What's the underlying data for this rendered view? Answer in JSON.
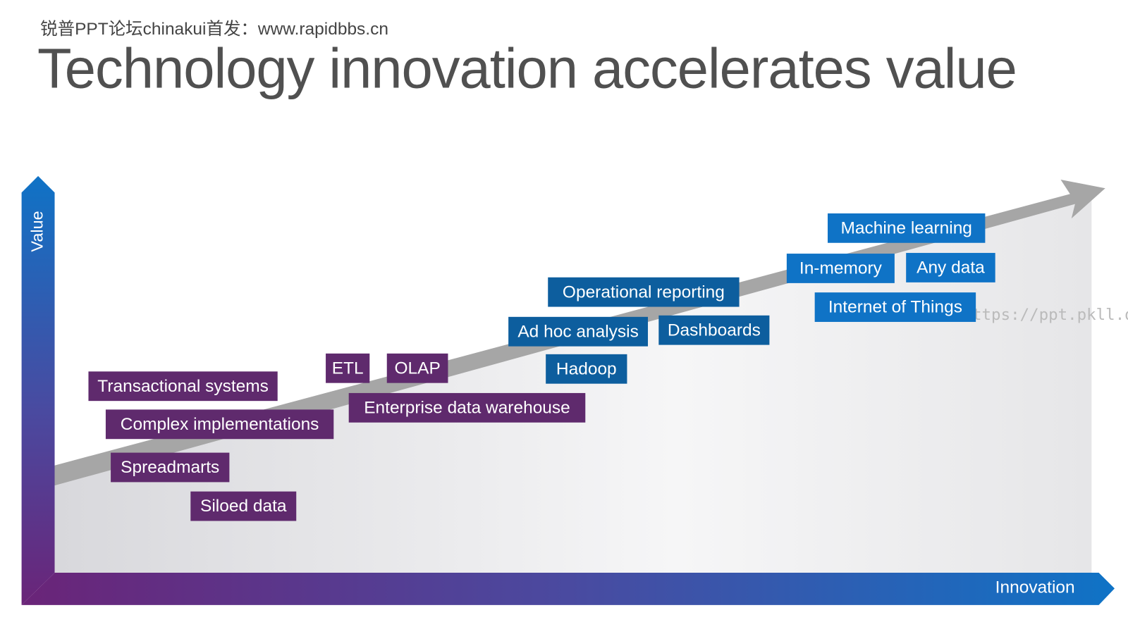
{
  "header": {
    "watermark": "锐普PPT论坛chinakui首发：www.rapidbbs.cn",
    "title": "Technology innovation accelerates value",
    "url_watermark": "ttps://ppt.pkll.de"
  },
  "axes": {
    "y_label": "Value",
    "x_label": "Innovation"
  },
  "nodes": [
    {
      "label": "Transactional systems"
    },
    {
      "label": "Complex implementations"
    },
    {
      "label": "Spreadmarts"
    },
    {
      "label": "Siloed data"
    },
    {
      "label": "ETL"
    },
    {
      "label": "OLAP"
    },
    {
      "label": "Enterprise data warehouse"
    },
    {
      "label": "Operational reporting"
    },
    {
      "label": "Ad hoc analysis"
    },
    {
      "label": "Dashboards"
    },
    {
      "label": "Hadoop"
    },
    {
      "label": "Machine learning"
    },
    {
      "label": "In-memory"
    },
    {
      "label": "Any data"
    },
    {
      "label": "Internet of Things"
    }
  ]
}
